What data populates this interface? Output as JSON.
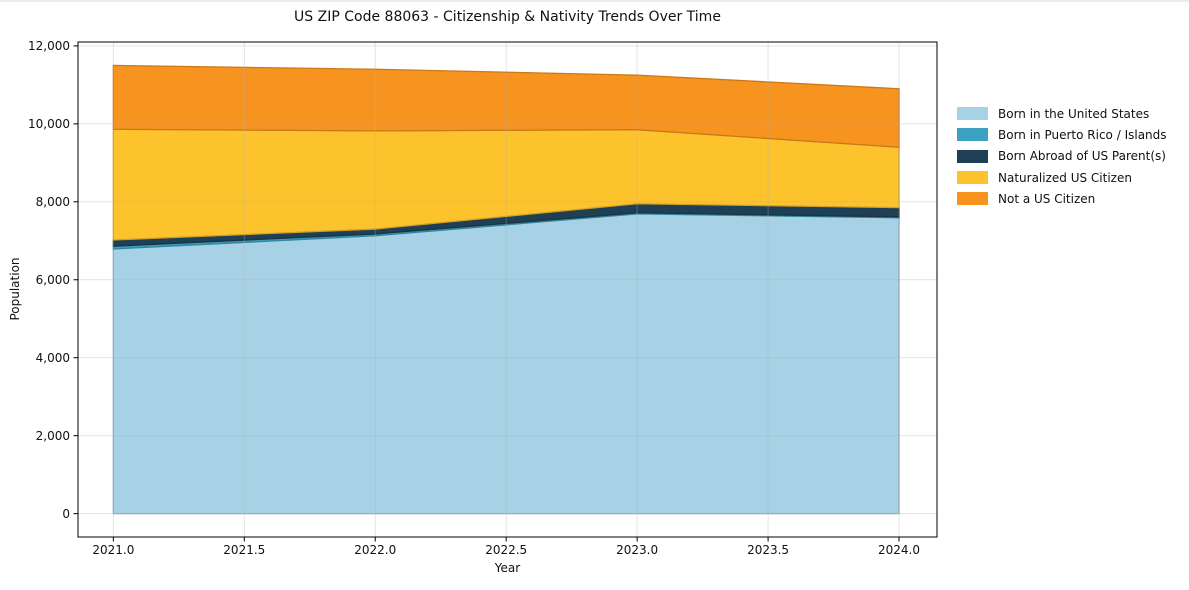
{
  "chart_data": {
    "type": "area",
    "stacked": true,
    "title": "US ZIP Code 88063 - Citizenship & Nativity Trends Over Time",
    "xlabel": "Year",
    "ylabel": "Population",
    "x": [
      2021,
      2022,
      2023,
      2024
    ],
    "series": [
      {
        "name": "Born in the United States",
        "color": "#a7d1e5",
        "values": [
          6790,
          7130,
          7690,
          7590
        ]
      },
      {
        "name": "Born in Puerto Rico / Islands",
        "color": "#3aa2c0",
        "values": [
          70,
          45,
          30,
          25
        ]
      },
      {
        "name": "Born Abroad of US Parent(s)",
        "color": "#1e3f54",
        "values": [
          160,
          125,
          230,
          235
        ]
      },
      {
        "name": "Naturalized US Citizen",
        "color": "#fdc32d",
        "values": [
          2840,
          2520,
          1900,
          1550
        ]
      },
      {
        "name": "Not a US Citizen",
        "color": "#f6941f",
        "values": [
          1640,
          1580,
          1400,
          1500
        ]
      }
    ],
    "stacked_totals": [
      11500,
      11400,
      11250,
      10900
    ],
    "xlim": [
      2020.865,
      2024.145
    ],
    "ylim": [
      -600,
      12100
    ],
    "xticks": [
      2021.0,
      2021.5,
      2022.0,
      2022.5,
      2023.0,
      2023.5,
      2024.0
    ],
    "xtick_labels": [
      "2021.0",
      "2021.5",
      "2022.0",
      "2022.5",
      "2023.0",
      "2023.5",
      "2024.0"
    ],
    "yticks": [
      0,
      2000,
      4000,
      6000,
      8000,
      10000,
      12000
    ],
    "ytick_labels": [
      "0",
      "2,000",
      "4,000",
      "6,000",
      "8,000",
      "10,000",
      "12,000"
    ],
    "grid": true,
    "grid_color": "#b0b0b0",
    "legend_position": "right-outside"
  }
}
